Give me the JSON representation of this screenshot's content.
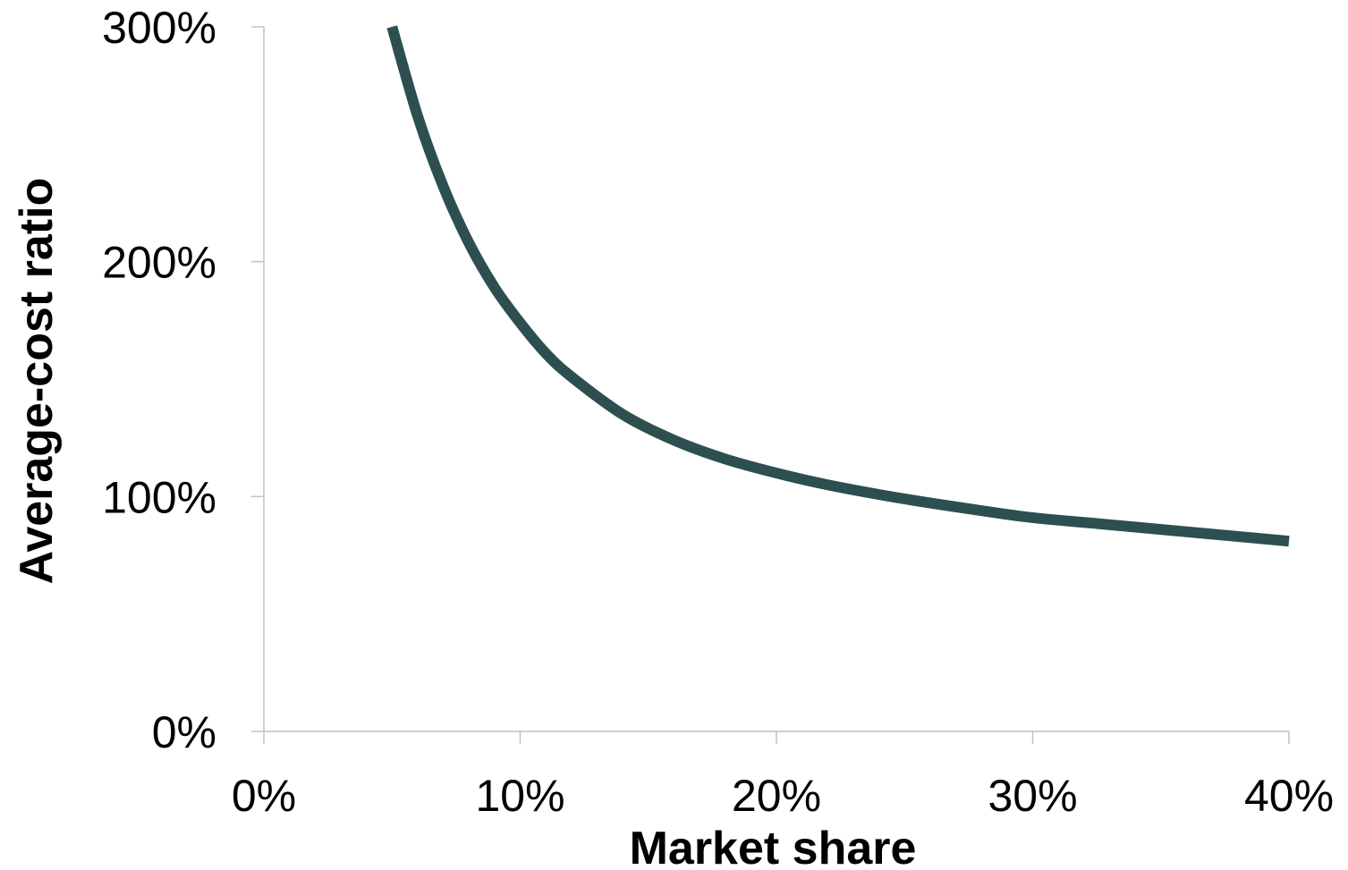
{
  "chart_data": {
    "type": "line",
    "title": "",
    "xlabel": "Market share",
    "ylabel": "Average-cost ratio",
    "x_ticks": [
      "0%",
      "10%",
      "20%",
      "30%",
      "40%"
    ],
    "y_ticks": [
      "0%",
      "100%",
      "200%",
      "300%"
    ],
    "xlim": [
      0,
      40
    ],
    "ylim": [
      0,
      300
    ],
    "grid": false,
    "legend": "none",
    "series": [
      {
        "color": "#2d4f4f",
        "x": [
          5,
          6,
          7,
          8,
          9,
          10,
          11,
          12,
          14,
          16,
          18,
          20,
          22,
          25,
          28,
          30,
          33,
          36,
          40
        ],
        "y": [
          300,
          262,
          232,
          208,
          189,
          174,
          161,
          151,
          135,
          124,
          116,
          110,
          105,
          99,
          94,
          91,
          88,
          85,
          81
        ]
      }
    ],
    "axis_color": "#c0c0c0"
  }
}
